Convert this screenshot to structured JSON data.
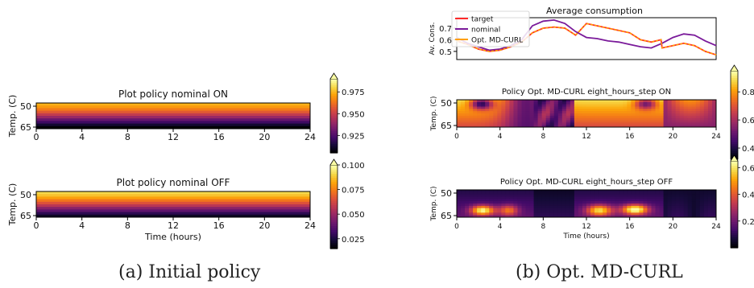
{
  "captions": {
    "left": "(a) Initial policy",
    "right": "(b) Opt. MD-CURL"
  },
  "colormap": "inferno",
  "chart_data": [
    {
      "type": "heatmap",
      "panel": "nominal-on",
      "title": "Plot policy nominal ON",
      "ylabel": "Temp. (C)",
      "xlabel": "",
      "xticks": [
        "0",
        "4",
        "8",
        "12",
        "16",
        "20",
        "24"
      ],
      "yticks": [
        "50",
        "65"
      ],
      "xlim": [
        0,
        24
      ],
      "colorbar_range": [
        0.905,
        0.99
      ],
      "colorbar_ticks": [
        "0.925",
        "0.950",
        "0.975"
      ],
      "rows_top_to_bottom": [
        0.975,
        0.971,
        0.965,
        0.958,
        0.949,
        0.94,
        0.93,
        0.921,
        0.912,
        0.905
      ]
    },
    {
      "type": "heatmap",
      "panel": "nominal-off",
      "title": "Plot policy nominal OFF",
      "ylabel": "Temp. (C)",
      "xlabel": "Time (hours)",
      "xticks": [
        "0",
        "4",
        "8",
        "12",
        "16",
        "20",
        "24"
      ],
      "yticks": [
        "50",
        "65"
      ],
      "xlim": [
        0,
        24
      ],
      "colorbar_range": [
        0.015,
        0.1
      ],
      "colorbar_ticks": [
        "0.025",
        "0.050",
        "0.075",
        "0.100"
      ],
      "rows_top_to_bottom": [
        0.092,
        0.088,
        0.082,
        0.074,
        0.066,
        0.057,
        0.047,
        0.038,
        0.028,
        0.02
      ]
    },
    {
      "type": "line",
      "panel": "average-consumption",
      "title": "Average consumption",
      "ylabel": "Av. Cons.",
      "xlabel": "",
      "xlim": [
        0,
        24
      ],
      "ylim": [
        0.43,
        0.79
      ],
      "yticks": [
        0.5,
        0.6,
        0.7
      ],
      "legend": "top-left",
      "series": [
        {
          "name": "target",
          "color": "#ff2a2a",
          "x": [
            0,
            1,
            2,
            3,
            4,
            5,
            6,
            7,
            8,
            9,
            10,
            11,
            12,
            13,
            14,
            15,
            16,
            17,
            18,
            18.9,
            19,
            20,
            21,
            22,
            23,
            24
          ],
          "y": [
            0.59,
            0.56,
            0.52,
            0.5,
            0.51,
            0.54,
            0.58,
            0.66,
            0.7,
            0.71,
            0.7,
            0.64,
            0.74,
            0.72,
            0.7,
            0.68,
            0.66,
            0.6,
            0.58,
            0.6,
            0.53,
            0.55,
            0.57,
            0.55,
            0.5,
            0.47
          ]
        },
        {
          "name": "nominal",
          "color": "#7a1a9a",
          "x": [
            0,
            1,
            2,
            3,
            4,
            5,
            6,
            7,
            8,
            9,
            10,
            11,
            12,
            13,
            14,
            15,
            16,
            17,
            18,
            19,
            20,
            21,
            22,
            23,
            24
          ],
          "y": [
            0.62,
            0.57,
            0.54,
            0.51,
            0.52,
            0.55,
            0.6,
            0.72,
            0.76,
            0.77,
            0.74,
            0.67,
            0.62,
            0.61,
            0.59,
            0.58,
            0.56,
            0.54,
            0.53,
            0.57,
            0.62,
            0.65,
            0.64,
            0.59,
            0.55
          ]
        },
        {
          "name": "Opt. MD-CURL",
          "color": "#ff9f00",
          "dashed": true,
          "x": [
            0,
            1,
            2,
            3,
            4,
            5,
            6,
            7,
            8,
            9,
            10,
            11,
            12,
            13,
            14,
            15,
            16,
            17,
            18,
            18.9,
            19,
            20,
            21,
            22,
            23,
            24
          ],
          "y": [
            0.59,
            0.56,
            0.52,
            0.5,
            0.51,
            0.54,
            0.58,
            0.66,
            0.7,
            0.71,
            0.7,
            0.64,
            0.74,
            0.72,
            0.7,
            0.68,
            0.66,
            0.6,
            0.58,
            0.6,
            0.53,
            0.55,
            0.57,
            0.55,
            0.5,
            0.47
          ]
        }
      ]
    },
    {
      "type": "heatmap",
      "panel": "opt-on",
      "title": "Policy Opt. MD-CURL eight_hours_step ON",
      "ylabel": "Temp. (C)",
      "xlabel": "",
      "xticks": [
        "0",
        "4",
        "8",
        "12",
        "16",
        "20",
        "24"
      ],
      "yticks": [
        "50",
        "65"
      ],
      "xlim": [
        0,
        24
      ],
      "colorbar_range": [
        0.32,
        0.95
      ],
      "colorbar_ticks": [
        "0.4",
        "0.6",
        "0.8"
      ],
      "pattern": "on"
    },
    {
      "type": "heatmap",
      "panel": "opt-off",
      "title": "Policy Opt. MD-CURL eight_hours_step OFF",
      "ylabel": "Temp. (C)",
      "xlabel": "Time (hours)",
      "xticks": [
        "0",
        "4",
        "8",
        "12",
        "16",
        "20",
        "24"
      ],
      "yticks": [
        "50",
        "65"
      ],
      "xlim": [
        0,
        24
      ],
      "colorbar_range": [
        0.0,
        0.65
      ],
      "colorbar_ticks": [
        "0.2",
        "0.4",
        "0.6"
      ],
      "pattern": "off"
    }
  ]
}
